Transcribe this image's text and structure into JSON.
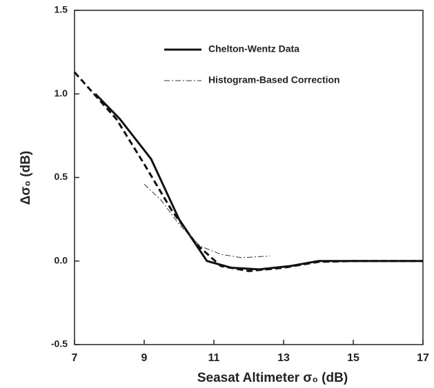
{
  "chart_data": {
    "type": "line",
    "xlabel": "Seasat Altimeter σ₀ (dB)",
    "ylabel": "Δσ₀ (dB)",
    "xlim": [
      7,
      17
    ],
    "xticks": [
      7,
      9,
      11,
      13,
      15,
      17
    ],
    "ylim": [
      -0.5,
      1.5
    ],
    "yticks": [
      -0.5,
      {
        "value": 0,
        "label": "0.0"
      },
      0.5,
      {
        "value": 1,
        "label": "1.0"
      },
      1.5
    ],
    "legend": "top-center",
    "series": [
      {
        "name": "Chelton-Wentz Data",
        "color": "#111111",
        "dash": "solid",
        "width": 3,
        "x": [
          7.6,
          8.3,
          9.2,
          10.0,
          10.8,
          11.5,
          12.3,
          13.2,
          14,
          15,
          16,
          17
        ],
        "values": [
          1.0,
          0.85,
          0.61,
          0.25,
          0.0,
          -0.04,
          -0.05,
          -0.03,
          0.0,
          0,
          0,
          0
        ]
      },
      {
        "name": "Histogram-Based Correction",
        "color": "#333333",
        "dash": "dashdot",
        "width": 1,
        "x": [
          9.0,
          9.5,
          10.0,
          10.6,
          11.2,
          11.8,
          12.6
        ],
        "values": [
          0.46,
          0.36,
          0.22,
          0.09,
          0.04,
          0.02,
          0.03
        ]
      },
      {
        "color": "#111111",
        "dash": "dashed",
        "width": 3,
        "x": [
          7,
          8.2,
          9.0,
          9.8,
          10.5,
          11.2,
          12,
          13,
          14,
          15,
          16,
          17
        ],
        "values": [
          1.13,
          0.85,
          0.58,
          0.3,
          0.1,
          -0.03,
          -0.06,
          -0.04,
          -0.005,
          0,
          0,
          0
        ]
      }
    ]
  }
}
